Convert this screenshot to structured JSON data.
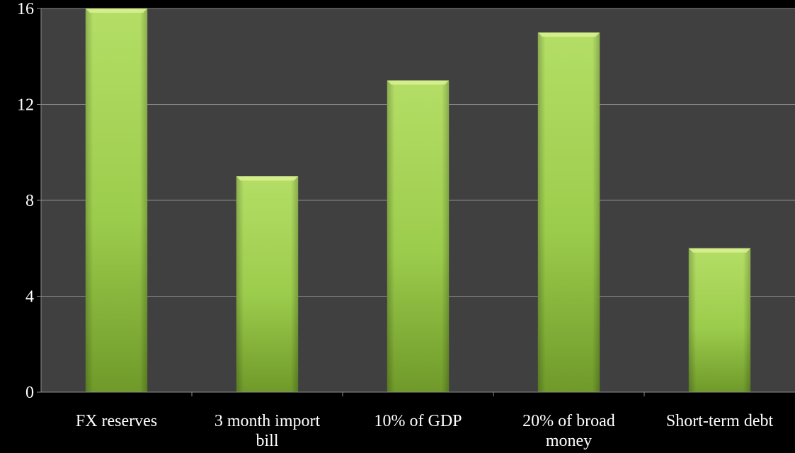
{
  "chart_data": {
    "type": "bar",
    "categories": [
      [
        "FX reserves"
      ],
      [
        "3 month import",
        "bill"
      ],
      [
        "10% of GDP"
      ],
      [
        "20% of broad",
        "money"
      ],
      [
        "Short-term debt"
      ]
    ],
    "values": [
      16,
      9,
      13,
      15,
      6
    ],
    "ylim": [
      0,
      16
    ],
    "yticks": [
      "0",
      "4",
      "8",
      "12",
      "16"
    ],
    "title": "",
    "xlabel": "",
    "ylabel": "",
    "grid": true,
    "legend": "none"
  },
  "colors": {
    "background": "#000000",
    "plot_area": "#404040",
    "bar_light": "#b6e06a",
    "bar_mid": "#98c84a",
    "bar_dark": "#6f9a2a",
    "gridline": "#8c8c8c",
    "text": "#ffffff"
  }
}
